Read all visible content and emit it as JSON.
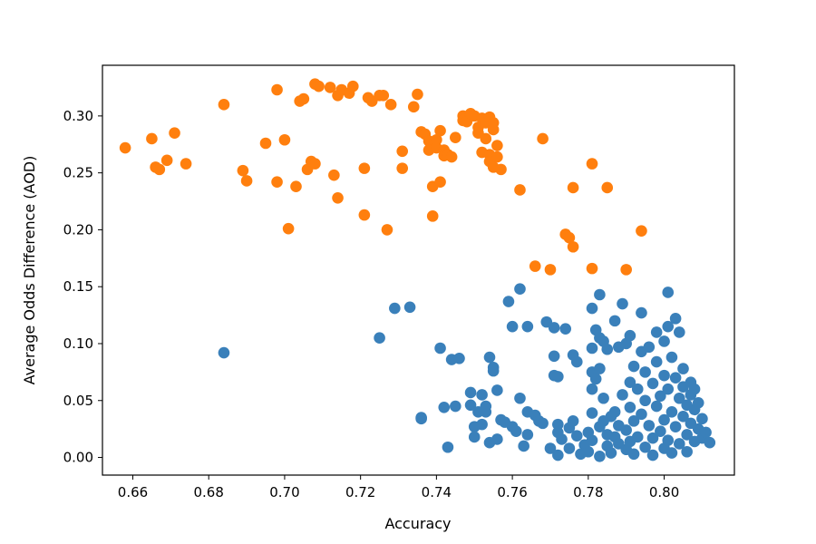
{
  "chart_data": {
    "type": "scatter",
    "title": "",
    "xlabel": "Accuracy",
    "ylabel": "Average Odds Difference (AOD)",
    "xlim": [
      0.652,
      0.8185
    ],
    "ylim": [
      -0.0155,
      0.3445
    ],
    "xticks": [
      0.66,
      0.68,
      0.7,
      0.72,
      0.74,
      0.76,
      0.78,
      0.8
    ],
    "xtick_labels": [
      "0.66",
      "0.68",
      "0.70",
      "0.72",
      "0.74",
      "0.76",
      "0.78",
      "0.80"
    ],
    "yticks": [
      0.0,
      0.05,
      0.1,
      0.15,
      0.2,
      0.25,
      0.3
    ],
    "ytick_labels": [
      "0.00",
      "0.05",
      "0.10",
      "0.15",
      "0.20",
      "0.25",
      "0.30"
    ],
    "grid": false,
    "legend": "none",
    "series": [
      {
        "color": "#ff7f0e",
        "points": [
          [
            0.658,
            0.272
          ],
          [
            0.665,
            0.28
          ],
          [
            0.666,
            0.255
          ],
          [
            0.667,
            0.253
          ],
          [
            0.669,
            0.261
          ],
          [
            0.671,
            0.285
          ],
          [
            0.674,
            0.258
          ],
          [
            0.684,
            0.31
          ],
          [
            0.689,
            0.252
          ],
          [
            0.69,
            0.243
          ],
          [
            0.695,
            0.276
          ],
          [
            0.698,
            0.242
          ],
          [
            0.698,
            0.323
          ],
          [
            0.7,
            0.279
          ],
          [
            0.701,
            0.201
          ],
          [
            0.703,
            0.238
          ],
          [
            0.704,
            0.313
          ],
          [
            0.705,
            0.315
          ],
          [
            0.706,
            0.253
          ],
          [
            0.707,
            0.26
          ],
          [
            0.708,
            0.328
          ],
          [
            0.708,
            0.258
          ],
          [
            0.709,
            0.326
          ],
          [
            0.712,
            0.325
          ],
          [
            0.713,
            0.248
          ],
          [
            0.714,
            0.228
          ],
          [
            0.714,
            0.318
          ],
          [
            0.715,
            0.323
          ],
          [
            0.717,
            0.32
          ],
          [
            0.718,
            0.326
          ],
          [
            0.721,
            0.254
          ],
          [
            0.721,
            0.213
          ],
          [
            0.722,
            0.316
          ],
          [
            0.723,
            0.313
          ],
          [
            0.725,
            0.318
          ],
          [
            0.726,
            0.318
          ],
          [
            0.727,
            0.2
          ],
          [
            0.728,
            0.31
          ],
          [
            0.731,
            0.254
          ],
          [
            0.731,
            0.269
          ],
          [
            0.734,
            0.308
          ],
          [
            0.735,
            0.319
          ],
          [
            0.736,
            0.286
          ],
          [
            0.737,
            0.284
          ],
          [
            0.738,
            0.278
          ],
          [
            0.738,
            0.27
          ],
          [
            0.739,
            0.212
          ],
          [
            0.739,
            0.238
          ],
          [
            0.74,
            0.272
          ],
          [
            0.74,
            0.279
          ],
          [
            0.741,
            0.242
          ],
          [
            0.741,
            0.287
          ],
          [
            0.742,
            0.27
          ],
          [
            0.742,
            0.265
          ],
          [
            0.743,
            0.266
          ],
          [
            0.744,
            0.264
          ],
          [
            0.745,
            0.281
          ],
          [
            0.747,
            0.3
          ],
          [
            0.747,
            0.296
          ],
          [
            0.748,
            0.295
          ],
          [
            0.749,
            0.302
          ],
          [
            0.75,
            0.3
          ],
          [
            0.751,
            0.29
          ],
          [
            0.751,
            0.285
          ],
          [
            0.752,
            0.298
          ],
          [
            0.752,
            0.268
          ],
          [
            0.753,
            0.294
          ],
          [
            0.753,
            0.28
          ],
          [
            0.754,
            0.266
          ],
          [
            0.754,
            0.299
          ],
          [
            0.754,
            0.26
          ],
          [
            0.755,
            0.294
          ],
          [
            0.755,
            0.255
          ],
          [
            0.755,
            0.288
          ],
          [
            0.756,
            0.274
          ],
          [
            0.756,
            0.264
          ],
          [
            0.757,
            0.253
          ],
          [
            0.762,
            0.235
          ],
          [
            0.766,
            0.168
          ],
          [
            0.768,
            0.28
          ],
          [
            0.77,
            0.165
          ],
          [
            0.774,
            0.196
          ],
          [
            0.775,
            0.193
          ],
          [
            0.776,
            0.237
          ],
          [
            0.776,
            0.185
          ],
          [
            0.781,
            0.166
          ],
          [
            0.781,
            0.258
          ],
          [
            0.785,
            0.237
          ],
          [
            0.79,
            0.165
          ],
          [
            0.794,
            0.199
          ]
        ]
      },
      {
        "color": "#3a80ba",
        "points": [
          [
            0.684,
            0.092
          ],
          [
            0.725,
            0.105
          ],
          [
            0.729,
            0.131
          ],
          [
            0.733,
            0.132
          ],
          [
            0.736,
            0.035
          ],
          [
            0.736,
            0.034
          ],
          [
            0.741,
            0.096
          ],
          [
            0.742,
            0.044
          ],
          [
            0.743,
            0.009
          ],
          [
            0.744,
            0.086
          ],
          [
            0.745,
            0.045
          ],
          [
            0.746,
            0.087
          ],
          [
            0.749,
            0.057
          ],
          [
            0.749,
            0.046
          ],
          [
            0.75,
            0.027
          ],
          [
            0.75,
            0.018
          ],
          [
            0.751,
            0.04
          ],
          [
            0.752,
            0.055
          ],
          [
            0.752,
            0.029
          ],
          [
            0.753,
            0.04
          ],
          [
            0.753,
            0.045
          ],
          [
            0.754,
            0.088
          ],
          [
            0.754,
            0.013
          ],
          [
            0.755,
            0.079
          ],
          [
            0.755,
            0.076
          ],
          [
            0.756,
            0.059
          ],
          [
            0.756,
            0.016
          ],
          [
            0.757,
            0.033
          ],
          [
            0.758,
            0.031
          ],
          [
            0.759,
            0.137
          ],
          [
            0.76,
            0.115
          ],
          [
            0.76,
            0.027
          ],
          [
            0.761,
            0.023
          ],
          [
            0.762,
            0.148
          ],
          [
            0.762,
            0.052
          ],
          [
            0.763,
            0.01
          ],
          [
            0.764,
            0.115
          ],
          [
            0.764,
            0.04
          ],
          [
            0.764,
            0.02
          ],
          [
            0.766,
            0.037
          ],
          [
            0.767,
            0.032
          ],
          [
            0.768,
            0.03
          ],
          [
            0.769,
            0.119
          ],
          [
            0.77,
            0.008
          ],
          [
            0.771,
            0.072
          ],
          [
            0.771,
            0.114
          ],
          [
            0.771,
            0.089
          ],
          [
            0.772,
            0.071
          ],
          [
            0.772,
            0.029
          ],
          [
            0.772,
            0.022
          ],
          [
            0.772,
            0.002
          ],
          [
            0.773,
            0.016
          ],
          [
            0.774,
            0.113
          ],
          [
            0.775,
            0.008
          ],
          [
            0.775,
            0.026
          ],
          [
            0.776,
            0.09
          ],
          [
            0.776,
            0.032
          ],
          [
            0.777,
            0.084
          ],
          [
            0.777,
            0.019
          ],
          [
            0.778,
            0.003
          ],
          [
            0.779,
            0.011
          ],
          [
            0.78,
            0.022
          ],
          [
            0.78,
            0.005
          ],
          [
            0.781,
            0.131
          ],
          [
            0.781,
            0.096
          ],
          [
            0.781,
            0.075
          ],
          [
            0.781,
            0.06
          ],
          [
            0.781,
            0.039
          ],
          [
            0.781,
            0.015
          ],
          [
            0.782,
            0.069
          ],
          [
            0.782,
            0.112
          ],
          [
            0.783,
            0.143
          ],
          [
            0.783,
            0.105
          ],
          [
            0.783,
            0.078
          ],
          [
            0.783,
            0.027
          ],
          [
            0.783,
            0.001
          ],
          [
            0.784,
            0.102
          ],
          [
            0.784,
            0.052
          ],
          [
            0.784,
            0.032
          ],
          [
            0.785,
            0.095
          ],
          [
            0.785,
            0.02
          ],
          [
            0.785,
            0.01
          ],
          [
            0.786,
            0.036
          ],
          [
            0.786,
            0.004
          ],
          [
            0.787,
            0.12
          ],
          [
            0.787,
            0.04
          ],
          [
            0.787,
            0.018
          ],
          [
            0.788,
            0.028
          ],
          [
            0.788,
            0.097
          ],
          [
            0.788,
            0.012
          ],
          [
            0.789,
            0.055
          ],
          [
            0.789,
            0.135
          ],
          [
            0.79,
            0.1
          ],
          [
            0.79,
            0.024
          ],
          [
            0.79,
            0.007
          ],
          [
            0.791,
            0.107
          ],
          [
            0.791,
            0.066
          ],
          [
            0.791,
            0.044
          ],
          [
            0.791,
            0.014
          ],
          [
            0.792,
            0.08
          ],
          [
            0.792,
            0.032
          ],
          [
            0.792,
            0.003
          ],
          [
            0.793,
            0.06
          ],
          [
            0.793,
            0.018
          ],
          [
            0.794,
            0.127
          ],
          [
            0.794,
            0.093
          ],
          [
            0.794,
            0.038
          ],
          [
            0.795,
            0.075
          ],
          [
            0.795,
            0.05
          ],
          [
            0.795,
            0.009
          ],
          [
            0.796,
            0.097
          ],
          [
            0.796,
            0.028
          ],
          [
            0.797,
            0.065
          ],
          [
            0.797,
            0.017
          ],
          [
            0.797,
            0.002
          ],
          [
            0.798,
            0.11
          ],
          [
            0.798,
            0.084
          ],
          [
            0.798,
            0.045
          ],
          [
            0.799,
            0.054
          ],
          [
            0.799,
            0.023
          ],
          [
            0.8,
            0.102
          ],
          [
            0.8,
            0.072
          ],
          [
            0.8,
            0.033
          ],
          [
            0.8,
            0.008
          ],
          [
            0.801,
            0.145
          ],
          [
            0.801,
            0.115
          ],
          [
            0.801,
            0.06
          ],
          [
            0.801,
            0.015
          ],
          [
            0.802,
            0.088
          ],
          [
            0.802,
            0.04
          ],
          [
            0.802,
            0.004
          ],
          [
            0.803,
            0.122
          ],
          [
            0.803,
            0.07
          ],
          [
            0.803,
            0.027
          ],
          [
            0.804,
            0.11
          ],
          [
            0.804,
            0.052
          ],
          [
            0.804,
            0.012
          ],
          [
            0.805,
            0.078
          ],
          [
            0.805,
            0.036
          ],
          [
            0.805,
            0.062
          ],
          [
            0.806,
            0.046
          ],
          [
            0.806,
            0.02
          ],
          [
            0.806,
            0.005
          ],
          [
            0.807,
            0.066
          ],
          [
            0.807,
            0.03
          ],
          [
            0.807,
            0.055
          ],
          [
            0.808,
            0.042
          ],
          [
            0.808,
            0.014
          ],
          [
            0.808,
            0.06
          ],
          [
            0.809,
            0.025
          ],
          [
            0.809,
            0.048
          ],
          [
            0.81,
            0.034
          ],
          [
            0.81,
            0.017
          ],
          [
            0.811,
            0.022
          ],
          [
            0.812,
            0.013
          ]
        ]
      }
    ]
  }
}
